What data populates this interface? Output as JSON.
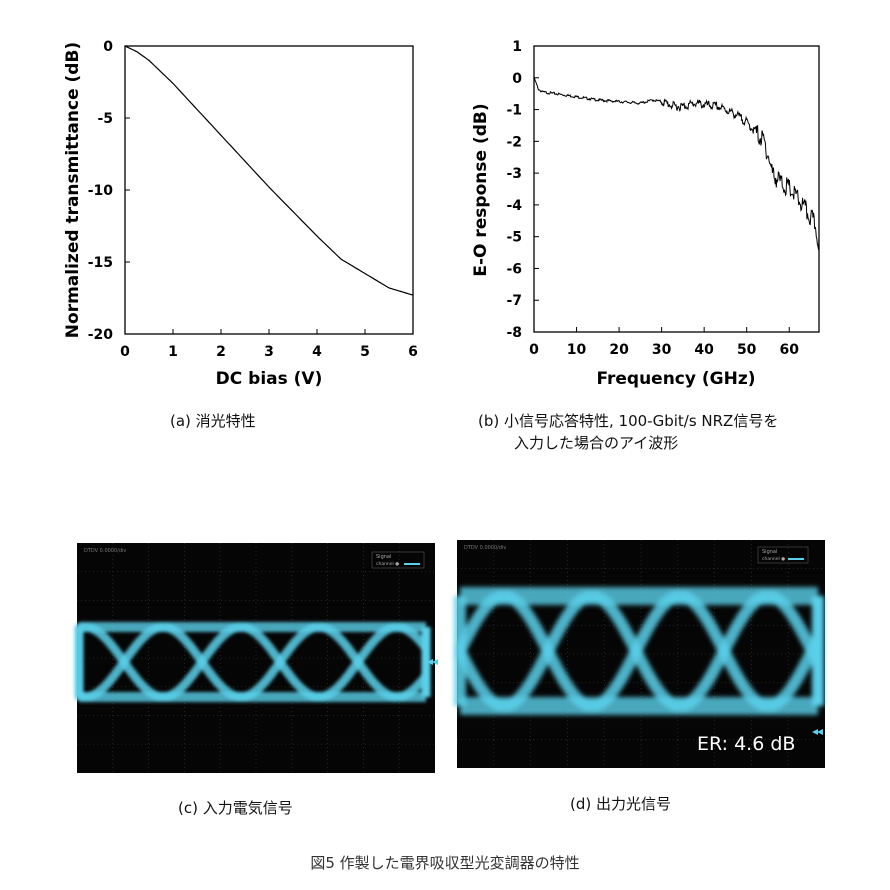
{
  "figure": {
    "title": "図5 作製した電界吸収型光変調器の特性"
  },
  "panels": {
    "a": {
      "caption": "(a)  消光特性"
    },
    "b": {
      "caption_line1": "(b)  小信号応答特性, 100-Gbit/s NRZ信号を",
      "caption_line2": "入力した場合のアイ波形"
    },
    "c": {
      "caption": "(c)  入力電気信号",
      "legend_title": "Signal",
      "legend_item": "channel ●",
      "header_text": "DTDV  0.0000/div"
    },
    "d": {
      "caption": "(d)  出力光信号",
      "legend_title": "Signal",
      "legend_item": "channel ●",
      "header_text": "DTDV  0.0000/div",
      "annotation": "ER: 4.6 dB"
    }
  },
  "colors": {
    "trace": "#000000",
    "eye": "#5ad0ea",
    "scope_bg": "#050505"
  },
  "chart_data": [
    {
      "type": "line",
      "panel": "a",
      "xlabel": "DC bias (V)",
      "ylabel": "Normalized transmittance (dB)",
      "xlim": [
        0,
        6
      ],
      "ylim": [
        -20,
        0
      ],
      "xticks": [
        "0",
        "1",
        "2",
        "3",
        "4",
        "5",
        "6"
      ],
      "yticks": [
        "0",
        "-5",
        "-10",
        "-15",
        "-20"
      ],
      "x": [
        0,
        0.25,
        0.5,
        0.75,
        1,
        1.5,
        2,
        2.5,
        3,
        3.5,
        4,
        4.5,
        5,
        5.5,
        6
      ],
      "y": [
        0,
        -0.4,
        -1.0,
        -1.8,
        -2.6,
        -4.4,
        -6.2,
        -8.0,
        -9.8,
        -11.5,
        -13.2,
        -14.8,
        -15.8,
        -16.8,
        -17.3
      ]
    },
    {
      "type": "line",
      "panel": "b",
      "xlabel": "Frequency (GHz)",
      "ylabel": "E-O response (dB)",
      "xlim": [
        0,
        67
      ],
      "ylim": [
        -8,
        1
      ],
      "xticks": [
        "0",
        "10",
        "20",
        "30",
        "40",
        "50",
        "60"
      ],
      "yticks": [
        "1",
        "0",
        "-1",
        "-2",
        "-3",
        "-4",
        "-5",
        "-6",
        "-7",
        "-8"
      ],
      "x": [
        0,
        1,
        2,
        5,
        10,
        15,
        20,
        25,
        28,
        30,
        33,
        35,
        38,
        40,
        43,
        45,
        48,
        50,
        52,
        54,
        55,
        56,
        58,
        60,
        62,
        64,
        66,
        67
      ],
      "y": [
        0,
        -0.35,
        -0.45,
        -0.5,
        -0.6,
        -0.7,
        -0.75,
        -0.8,
        -0.7,
        -0.75,
        -0.9,
        -0.9,
        -0.8,
        -0.85,
        -0.9,
        -1.0,
        -1.2,
        -1.4,
        -1.7,
        -2.0,
        -2.4,
        -3.0,
        -3.3,
        -3.5,
        -3.8,
        -4.2,
        -4.6,
        -5.2
      ]
    }
  ]
}
